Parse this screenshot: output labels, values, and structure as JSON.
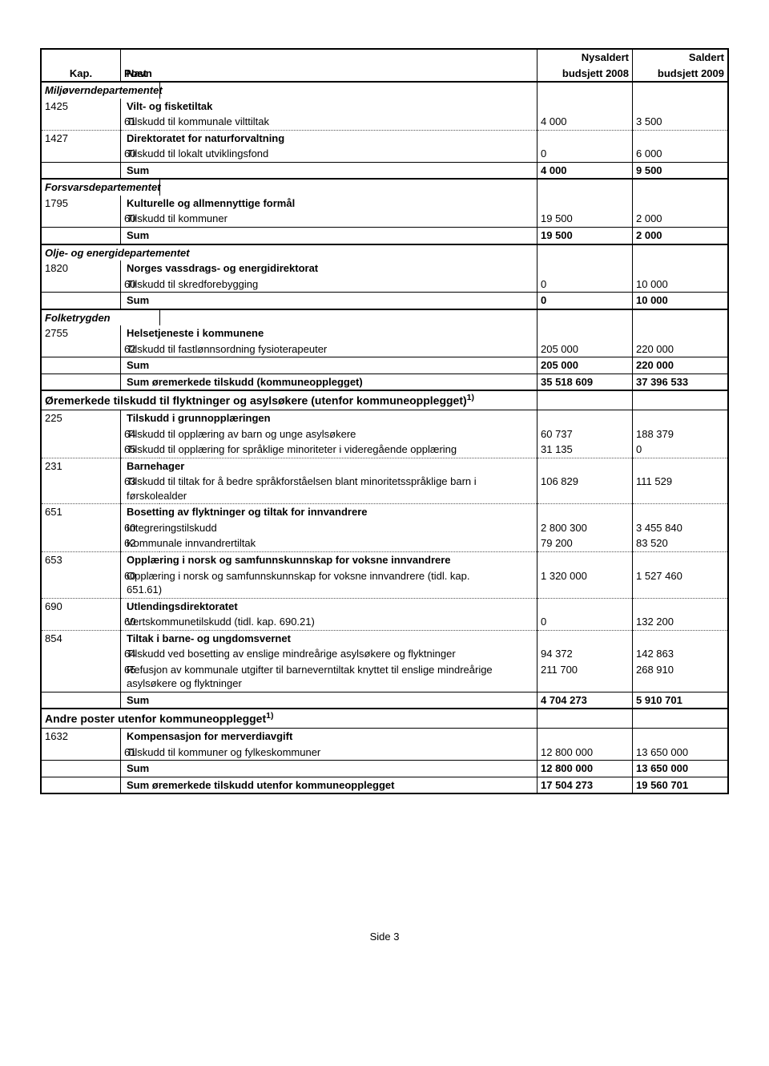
{
  "header": {
    "kap": "Kap.",
    "post": "Post",
    "navn": "Navn",
    "col1a": "Nysaldert",
    "col1b": "budsjett 2008",
    "col2a": "Saldert",
    "col2b": "budsjett 2009"
  },
  "sections": {
    "miljo": {
      "title": "Miljøverndepartementet",
      "r1": {
        "kap": "1425",
        "navn": "Vilt- og fisketiltak"
      },
      "r2": {
        "post": "61",
        "navn": "Tilskudd til kommunale vilttiltak",
        "v1": "4 000",
        "v2": "3 500"
      },
      "r3": {
        "kap": "1427",
        "navn": "Direktoratet for naturforvaltning"
      },
      "r4": {
        "post": "60",
        "navn": "Tilskudd til lokalt utviklingsfond",
        "v1": "0",
        "v2": "6 000"
      },
      "sum": {
        "navn": "Sum",
        "v1": "4 000",
        "v2": "9 500"
      }
    },
    "forsvar": {
      "title": "Forsvarsdepartementet",
      "r1": {
        "kap": "1795",
        "navn": "Kulturelle og allmennyttige formål"
      },
      "r2": {
        "post": "60",
        "navn": "Tilskudd til kommuner",
        "v1": "19 500",
        "v2": "2 000"
      },
      "sum": {
        "navn": "Sum",
        "v1": "19 500",
        "v2": "2 000"
      }
    },
    "olje": {
      "title": "Olje- og energidepartementet",
      "r1": {
        "kap": "1820",
        "navn": "Norges vassdrags- og energidirektorat"
      },
      "r2": {
        "post": "60",
        "navn": "Tilskudd til skredforebygging",
        "v1": "0",
        "v2": "10 000"
      },
      "sum": {
        "navn": "Sum",
        "v1": "0",
        "v2": "10 000"
      }
    },
    "folke": {
      "title": "Folketrygden",
      "r1": {
        "kap": "2755",
        "navn": "Helsetjeneste i kommunene"
      },
      "r2": {
        "post": "62",
        "navn": "Tilskudd til fastlønnsordning fysioterapeuter",
        "v1": "205 000",
        "v2": "220 000"
      },
      "sum": {
        "navn": "Sum",
        "v1": "205 000",
        "v2": "220 000"
      },
      "sum2": {
        "navn": "Sum øremerkede tilskudd (kommuneopplegget)",
        "v1": "35 518 609",
        "v2": "37 396 533"
      }
    },
    "orem": {
      "title_a": "Øremerkede tilskudd til flyktninger og asylsøkere (utenfor kommuneopplegget)",
      "title_sup": "1)",
      "r1": {
        "kap": "225",
        "navn": "Tilskudd i grunnopplæringen"
      },
      "r2": {
        "post": "64",
        "navn": "Tilskudd til opplæring av barn og unge asylsøkere",
        "v1": "60 737",
        "v2": "188 379"
      },
      "r3": {
        "post": "65",
        "navn": "Tilskudd til opplæring for språklige minoriteter i videregående opplæring",
        "v1": "31 135",
        "v2": "0"
      },
      "r4": {
        "kap": "231",
        "navn": "Barnehager"
      },
      "r5": {
        "post": "63",
        "navn": "Tilskudd til tiltak for å bedre språkforståelsen blant minoritetsspråklige barn i førskolealder",
        "v1": "106 829",
        "v2": "111 529"
      },
      "r6": {
        "kap": "651",
        "navn": "Bosetting av flyktninger og tiltak for innvandrere"
      },
      "r7": {
        "post": "60",
        "navn": "Integreringstilskudd",
        "v1": "2 800 300",
        "v2": "3 455 840"
      },
      "r8": {
        "post": "62",
        "navn": "Kommunale innvandrertiltak",
        "v1": "79 200",
        "v2": "83 520"
      },
      "r9": {
        "kap": "653",
        "navn": "Opplæring i norsk og samfunnskunnskap for voksne innvandrere"
      },
      "r10": {
        "post": "60",
        "navn": "Opplæring i norsk og samfunnskunnskap for voksne innvandrere (tidl. kap. 651.61)",
        "v1": "1 320 000",
        "v2": "1 527 460"
      },
      "r11": {
        "kap": "690",
        "navn": "Utlendingsdirektoratet"
      },
      "r12": {
        "post": "60",
        "navn": "Vertskommunetilskudd (tidl. kap. 690.21)",
        "v1": "0",
        "v2": "132 200"
      },
      "r13": {
        "kap": "854",
        "navn": "Tiltak i barne- og ungdomsvernet"
      },
      "r14": {
        "post": "64",
        "navn": "Tilskudd ved bosetting av enslige mindreårige asylsøkere og flyktninger",
        "v1": "94 372",
        "v2": "142 863"
      },
      "r15": {
        "post": "65",
        "navn": "Refusjon av kommunale utgifter til barneverntiltak knyttet til enslige mindreårige asylsøkere og flyktninger",
        "v1": "211 700",
        "v2": "268 910"
      },
      "sum": {
        "navn": "Sum",
        "v1": "4 704 273",
        "v2": "5 910 701"
      }
    },
    "andre": {
      "title_a": "Andre poster utenfor kommuneopplegget",
      "title_sup": "1)",
      "r1": {
        "kap": "1632",
        "navn": "Kompensasjon for merverdiavgift"
      },
      "r2": {
        "post": "61",
        "navn": "Tilskudd til kommuner og fylkeskommuner",
        "v1": "12 800 000",
        "v2": "13 650 000"
      },
      "sum": {
        "navn": "Sum",
        "v1": "12 800 000",
        "v2": "13 650 000"
      },
      "sum2": {
        "navn": "Sum øremerkede tilskudd utenfor kommuneopplegget",
        "v1": "17 504 273",
        "v2": "19 560 701"
      }
    }
  },
  "footer": "Side 3"
}
